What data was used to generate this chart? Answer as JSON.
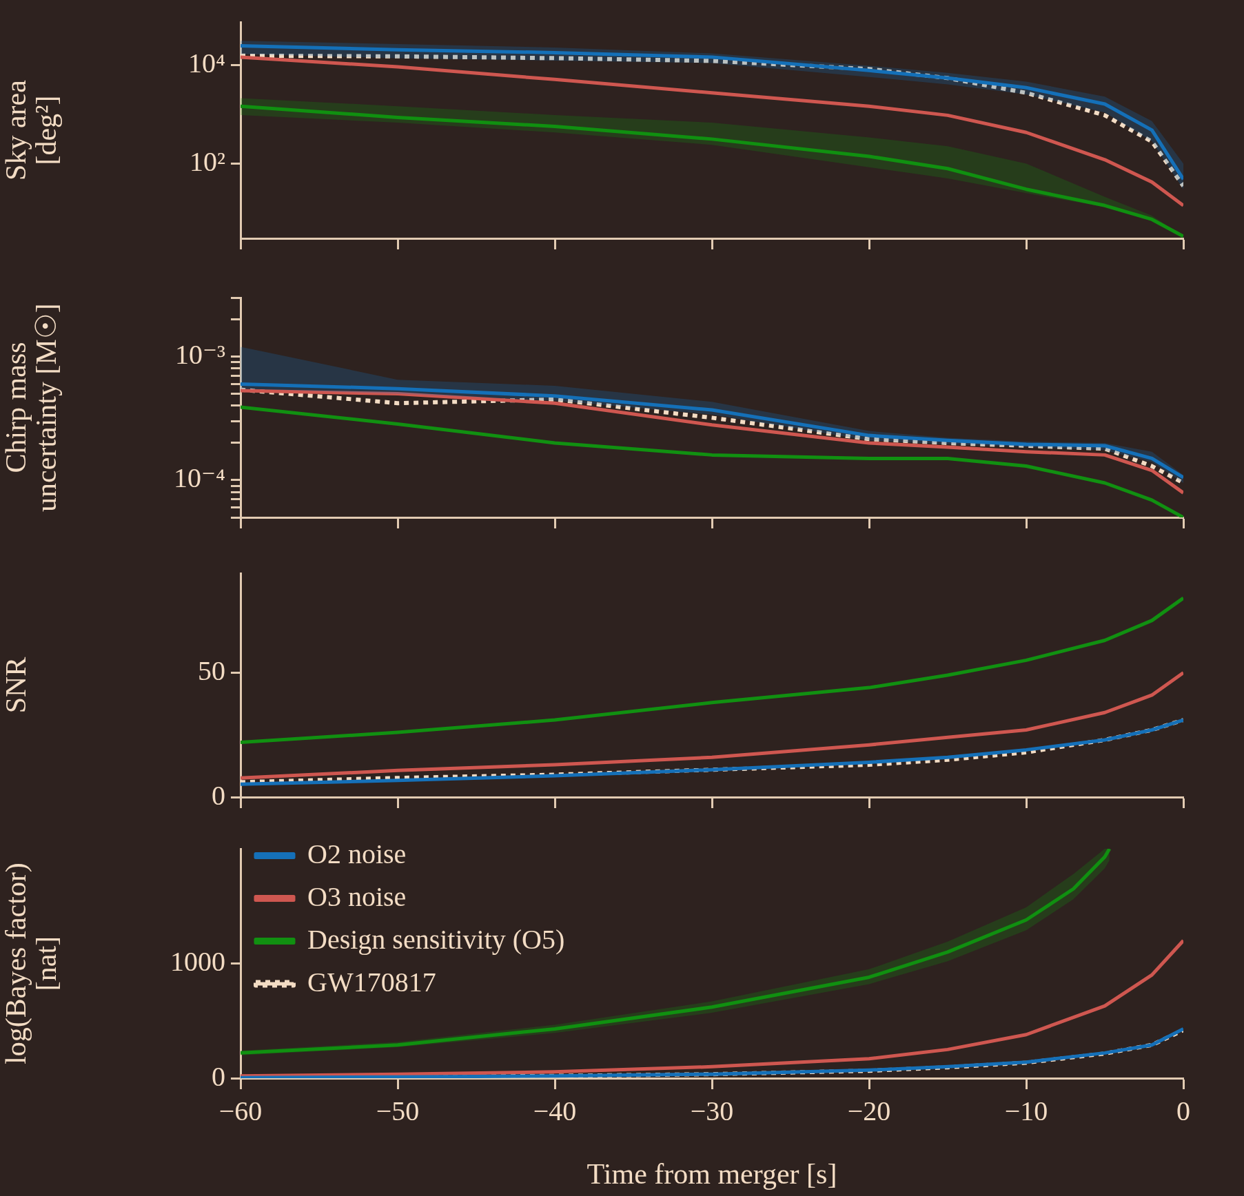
{
  "chart_data": [
    {
      "type": "line",
      "ylabel": "Sky area\n[deg²]",
      "log": true,
      "xlim": [
        -60,
        0
      ],
      "xticks": [
        -60,
        -50,
        -40,
        -30,
        -20,
        -10,
        0
      ],
      "tick_labels": "y",
      "ylim": [
        3,
        76000
      ],
      "yticks": [
        {
          "value": 100,
          "label": "10²"
        },
        {
          "value": 10000,
          "label": "10⁴"
        }
      ],
      "x": [
        -60,
        -50,
        -40,
        -30,
        -20,
        -15,
        -10,
        -5,
        -2,
        0
      ],
      "series": [
        {
          "color": "#1570b8",
          "values": [
            25000,
            20800,
            18100,
            14700,
            7840,
            5530,
            3500,
            1630,
            480,
            48
          ],
          "lower": [
            16900,
            14000,
            12500,
            11100,
            5800,
            4100,
            2560,
            1100,
            285,
            30
          ],
          "upper": [
            31600,
            27000,
            23000,
            17500,
            9800,
            7000,
            4650,
            2300,
            730,
            100
          ]
        },
        {
          "color": "#cf5750",
          "values": [
            14700,
            9300,
            5150,
            2750,
            1470,
            960,
            430,
            120,
            42,
            14
          ]
        },
        {
          "color": "#119011",
          "values": [
            1470,
            870,
            570,
            315,
            140,
            79,
            30,
            14,
            7.3,
            3.3
          ],
          "lower": [
            970,
            680,
            430,
            240,
            84,
            50,
            25,
            13,
            6.8,
            3.3
          ],
          "upper": [
            2150,
            1470,
            970,
            680,
            340,
            225,
            100,
            21,
            8.7,
            3.3
          ]
        },
        {
          "color": "#f3dcc4",
          "line_style": "dotted",
          "values": [
            15700,
            15200,
            14000,
            12300,
            8400,
            5500,
            2750,
            960,
            280,
            35
          ]
        }
      ]
    },
    {
      "type": "line",
      "ylabel": "Chirp mass\nuncertainty [M☉]",
      "log": true,
      "xlim": [
        -60,
        0
      ],
      "xticks": [
        -60,
        -50,
        -40,
        -30,
        -20,
        -10,
        0
      ],
      "tick_labels": "y",
      "ylim": [
        5e-05,
        0.003
      ],
      "yticks": [
        {
          "value": 5e-05,
          "label": null
        },
        {
          "value": 6e-05,
          "label": null
        },
        {
          "value": 7e-05,
          "label": null
        },
        {
          "value": 8e-05,
          "label": null
        },
        {
          "value": 9e-05,
          "label": null
        },
        {
          "value": 0.0001,
          "label": "10⁻⁴"
        },
        {
          "value": 0.0002,
          "label": null
        },
        {
          "value": 0.0003,
          "label": null
        },
        {
          "value": 0.0004,
          "label": null
        },
        {
          "value": 0.0005,
          "label": null
        },
        {
          "value": 0.0006,
          "label": null
        },
        {
          "value": 0.0007,
          "label": null
        },
        {
          "value": 0.0008,
          "label": null
        },
        {
          "value": 0.0009,
          "label": null
        },
        {
          "value": 0.001,
          "label": "10⁻³"
        },
        {
          "value": 0.002,
          "label": null
        },
        {
          "value": 0.003,
          "label": null
        }
      ],
      "x": [
        -60,
        -50,
        -40,
        -30,
        -20,
        -15,
        -10,
        -5,
        -2,
        0
      ],
      "series": [
        {
          "color": "#1570b8",
          "values": [
            0.0006,
            0.00055,
            0.00048,
            0.00037,
            0.00023,
            0.00021,
            0.000195,
            0.00019,
            0.00015,
            0.000105
          ],
          "lower": [
            0.00055,
            0.0005,
            0.00044,
            0.00034,
            0.00021,
            0.000195,
            0.000185,
            0.000175,
            0.00014,
            9.5e-05
          ],
          "upper": [
            0.0012,
            0.00065,
            0.00058,
            0.00043,
            0.00025,
            0.00022,
            0.000205,
            0.0002,
            0.00017,
            0.00011
          ]
        },
        {
          "color": "#cf5750",
          "values": [
            0.00053,
            0.0005,
            0.00042,
            0.00028,
            0.0002,
            0.000185,
            0.00017,
            0.00016,
            0.00012,
            7.9e-05
          ]
        },
        {
          "color": "#119011",
          "values": [
            0.00039,
            0.000285,
            0.0002,
            0.00016,
            0.00015,
            0.00015,
            0.00013,
            9.5e-05,
            6.9e-05,
            5e-05
          ]
        },
        {
          "color": "#f3dcc4",
          "line_style": "dotted",
          "values": [
            0.00054,
            0.00042,
            0.00045,
            0.00032,
            0.000215,
            0.0002,
            0.00019,
            0.00018,
            0.00013,
            9.5e-05
          ]
        }
      ]
    },
    {
      "type": "line",
      "ylabel": "SNR",
      "xlim": [
        -60,
        0
      ],
      "xticks": [
        -60,
        -50,
        -40,
        -30,
        -20,
        -10,
        0
      ],
      "tick_labels": "y",
      "ylim": [
        0,
        90
      ],
      "yticks": [
        0,
        50
      ],
      "x": [
        -60,
        -50,
        -40,
        -30,
        -20,
        -15,
        -10,
        -5,
        -2,
        0
      ],
      "series": [
        {
          "color": "#1570b8",
          "values": [
            5.2,
            6.7,
            8.6,
            11,
            14,
            16,
            19,
            23,
            27,
            31
          ]
        },
        {
          "color": "#cf5750",
          "values": [
            7.7,
            10.7,
            13,
            16,
            21,
            24,
            27,
            34,
            41,
            50
          ]
        },
        {
          "color": "#119011",
          "values": [
            22,
            26,
            31,
            38,
            44,
            49,
            55,
            63,
            71,
            80
          ]
        },
        {
          "color": "#f3dcc4",
          "line_style": "dotted",
          "values": [
            6,
            7.7,
            9,
            11,
            13,
            15,
            18,
            23,
            27,
            31
          ]
        }
      ]
    },
    {
      "type": "line",
      "ylabel": "log(Bayes factor)\n[nat]",
      "xlabel": "Time from merger [s]",
      "legend": "top left",
      "xlim": [
        -60,
        0
      ],
      "xticks": [
        {
          "value": -60,
          "label": "−60"
        },
        {
          "value": -50,
          "label": "−50"
        },
        {
          "value": -40,
          "label": "−40"
        },
        {
          "value": -30,
          "label": "−30"
        },
        {
          "value": -20,
          "label": "−20"
        },
        {
          "value": -10,
          "label": "−10"
        },
        0
      ],
      "ylim": [
        0,
        2000
      ],
      "yticks": [
        0,
        1000
      ],
      "x": [
        -60,
        -50,
        -40,
        -30,
        -20,
        -15,
        -10,
        -5,
        -2,
        0
      ],
      "series": [
        {
          "name": "O2 noise",
          "color": "#1570b8",
          "values": [
            5,
            10,
            20,
            35,
            70,
            100,
            140,
            220,
            290,
            430
          ]
        },
        {
          "name": "O3 noise",
          "color": "#cf5750",
          "values": [
            20,
            35,
            55,
            100,
            170,
            250,
            380,
            630,
            900,
            1200
          ]
        },
        {
          "name": "Design sensitivity (O5)",
          "color": "#119011",
          "x": [
            -60,
            -50,
            -40,
            -30,
            -20,
            -15,
            -10,
            -7,
            -5,
            -4.7
          ],
          "values": [
            220,
            290,
            430,
            620,
            880,
            1100,
            1380,
            1650,
            1930,
            2000
          ],
          "lower": [
            200,
            270,
            395,
            570,
            820,
            1020,
            1290,
            1560,
            1830,
            1900
          ],
          "upper": [
            240,
            315,
            465,
            670,
            950,
            1190,
            1490,
            1780,
            2000,
            2000
          ]
        },
        {
          "name": "GW170817",
          "color": "#f3dcc4",
          "line_style": "dotted",
          "values": [
            5,
            10,
            20,
            35,
            65,
            95,
            135,
            215,
            290,
            420
          ]
        }
      ]
    }
  ]
}
